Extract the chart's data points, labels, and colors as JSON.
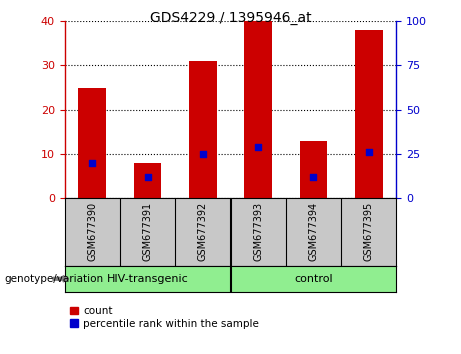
{
  "title": "GDS4229 / 1395946_at",
  "samples": [
    "GSM677390",
    "GSM677391",
    "GSM677392",
    "GSM677393",
    "GSM677394",
    "GSM677395"
  ],
  "count_values": [
    25,
    8,
    31,
    40,
    13,
    38
  ],
  "percentile_values": [
    20,
    12,
    25,
    29,
    12,
    26
  ],
  "groups": [
    {
      "label": "HIV-transgenic",
      "start": 0,
      "end": 3
    },
    {
      "label": "control",
      "start": 3,
      "end": 6
    }
  ],
  "group_boundary": 3,
  "left_ylim": [
    0,
    40
  ],
  "right_ylim": [
    0,
    100
  ],
  "left_yticks": [
    0,
    10,
    20,
    30,
    40
  ],
  "right_yticks": [
    0,
    25,
    50,
    75,
    100
  ],
  "left_ycolor": "#cc0000",
  "right_ycolor": "#0000cc",
  "bar_color": "#cc0000",
  "dot_color": "#0000cc",
  "gray_color": "#c8c8c8",
  "green_color": "#90EE90",
  "legend_count_label": "count",
  "legend_percentile_label": "percentile rank within the sample",
  "xlabel_group": "genotype/variation"
}
